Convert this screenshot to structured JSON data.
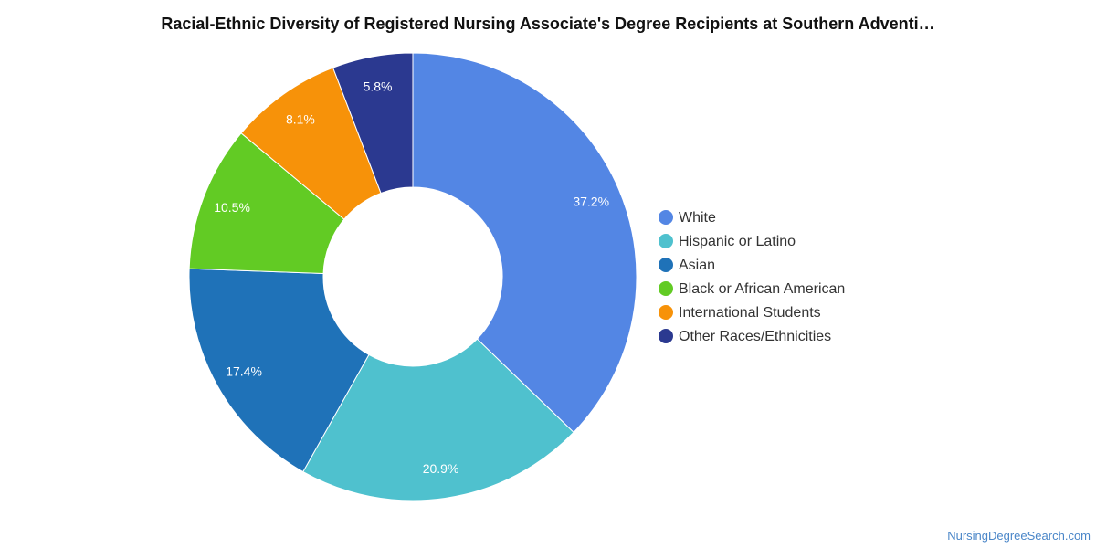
{
  "chart_data": {
    "type": "pie",
    "variant": "donut",
    "title": "Racial-Ethnic Diversity of Registered Nursing Associate's Degree Recipients at Southern Adventi…",
    "legend_position": "right",
    "categories": [
      "White",
      "Hispanic or Latino",
      "Asian",
      "Black or African American",
      "International Students",
      "Other Races/Ethnicities"
    ],
    "values": [
      37.2,
      20.9,
      17.4,
      10.5,
      8.1,
      5.8
    ],
    "labels": [
      "37.2%",
      "20.9%",
      "17.4%",
      "10.5%",
      "8.1%",
      "5.8%"
    ],
    "colors": [
      "#5386e4",
      "#4fc1ce",
      "#1f72b8",
      "#62cb24",
      "#f79209",
      "#2b3990"
    ]
  },
  "footer": {
    "source": "NursingDegreeSearch.com"
  }
}
